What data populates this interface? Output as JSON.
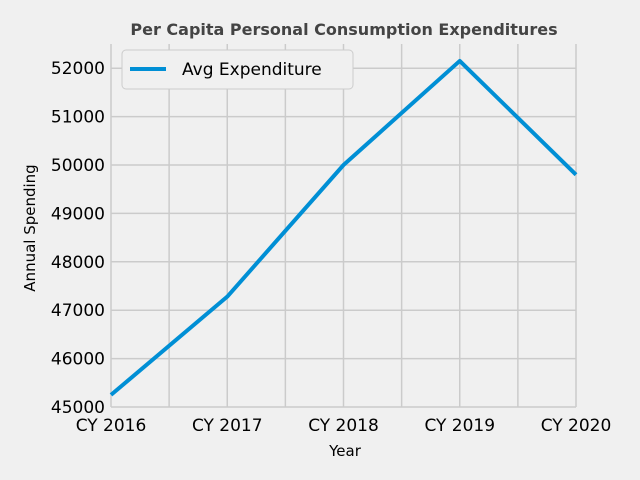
{
  "chart_data": {
    "type": "line",
    "title": "Per Capita Personal Consumption Expenditures",
    "xlabel": "Year",
    "ylabel": "Annual Spending",
    "categories": [
      "CY 2016",
      "CY 2017",
      "CY 2018",
      "CY 2019",
      "CY 2020"
    ],
    "series": [
      {
        "name": "Avg Expenditure",
        "values": [
          45250,
          47280,
          50000,
          52150,
          49800
        ],
        "color": "#008fd5"
      }
    ],
    "ylim": [
      45000,
      52500
    ],
    "yticks": [
      45000,
      46000,
      47000,
      48000,
      49000,
      50000,
      51000,
      52000
    ],
    "grid": true,
    "legend_position": "upper-left"
  }
}
